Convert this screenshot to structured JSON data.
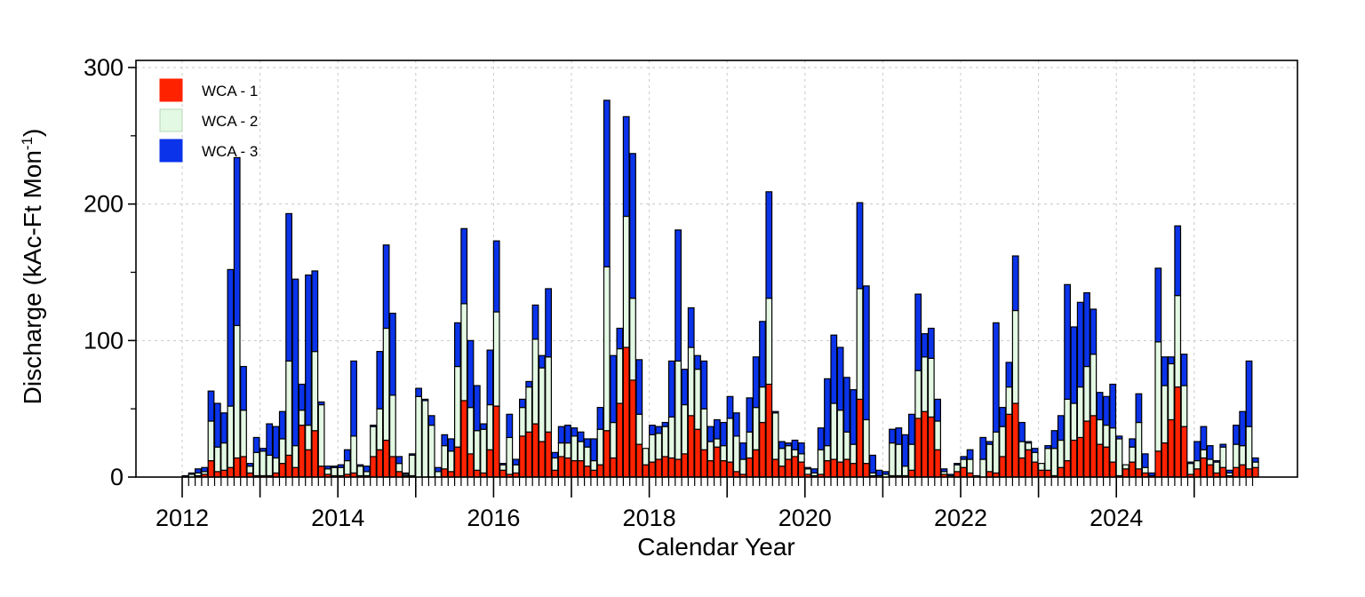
{
  "chart_data": {
    "type": "bar",
    "stacked": true,
    "title": "",
    "xlabel": "Calendar Year",
    "ylabel": "Discharge (kAc-Ft Mon",
    "ylabel_superscript": "-1",
    "ylabel_close": ")",
    "ylim": [
      0,
      300
    ],
    "yticks": [
      0,
      100,
      200,
      300
    ],
    "y_minor_ticks": [
      50,
      150,
      250
    ],
    "grid": true,
    "x_start": {
      "year": 2012,
      "month": 1
    },
    "x_tick_labels": [
      "2012",
      "2014",
      "2016",
      "2018",
      "2020",
      "2022",
      "2024"
    ],
    "x_major_years": [
      2012,
      2013,
      2014,
      2015,
      2016,
      2017,
      2018,
      2019,
      2020,
      2021,
      2022,
      2023,
      2024,
      2025
    ],
    "legend_position": "top-left",
    "series": [
      {
        "name": "WCA - 1",
        "color": "#ff2200",
        "values": [
          0,
          0,
          1,
          2,
          12,
          4,
          5,
          7,
          14,
          15,
          3,
          1,
          1,
          1,
          3,
          10,
          16,
          7,
          38,
          20,
          34,
          8,
          2,
          1,
          1,
          2,
          3,
          1,
          1,
          15,
          20,
          27,
          15,
          4,
          1,
          1,
          0,
          0,
          0,
          0,
          6,
          4,
          22,
          56,
          17,
          5,
          3,
          20,
          52,
          5,
          2,
          3,
          30,
          33,
          39,
          26,
          33,
          5,
          15,
          14,
          12,
          12,
          8,
          5,
          9,
          34,
          14,
          54,
          95,
          71,
          24,
          9,
          11,
          13,
          15,
          14,
          13,
          17,
          45,
          35,
          20,
          12,
          22,
          12,
          11,
          4,
          2,
          14,
          20,
          40,
          68,
          13,
          8,
          13,
          15,
          11,
          2,
          1,
          2,
          12,
          13,
          11,
          13,
          10,
          57,
          10,
          1,
          0,
          0,
          1,
          1,
          1,
          5,
          43,
          48,
          44,
          20,
          2,
          0,
          4,
          7,
          3,
          0,
          0,
          4,
          3,
          15,
          46,
          54,
          14,
          20,
          11,
          5,
          5,
          1,
          7,
          12,
          27,
          29,
          41,
          45,
          24,
          22,
          11,
          1,
          6,
          11,
          6,
          3,
          1,
          19,
          25,
          42,
          66,
          37,
          2,
          6,
          14,
          9,
          3,
          7,
          1,
          7,
          9,
          6,
          7
        ]
      },
      {
        "name": "WCA - 2",
        "color": "#e4f9e4",
        "values": [
          0,
          2,
          2,
          2,
          29,
          18,
          20,
          45,
          97,
          34,
          5,
          17,
          18,
          15,
          11,
          18,
          69,
          16,
          11,
          18,
          58,
          45,
          4,
          6,
          6,
          10,
          27,
          7,
          3,
          22,
          30,
          82,
          45,
          6,
          1,
          15,
          59,
          56,
          38,
          4,
          17,
          15,
          59,
          71,
          34,
          29,
          32,
          33,
          69,
          4,
          27,
          6,
          21,
          33,
          62,
          54,
          55,
          9,
          10,
          11,
          18,
          14,
          14,
          7,
          26,
          120,
          26,
          40,
          96,
          60,
          22,
          12,
          20,
          19,
          22,
          30,
          72,
          36,
          50,
          44,
          30,
          14,
          6,
          11,
          32,
          26,
          11,
          19,
          31,
          26,
          63,
          34,
          13,
          10,
          5,
          6,
          4,
          2,
          18,
          11,
          41,
          38,
          20,
          14,
          81,
          32,
          2,
          1,
          2,
          24,
          23,
          7,
          19,
          35,
          40,
          43,
          21,
          2,
          1,
          5,
          6,
          10,
          1,
          13,
          20,
          30,
          22,
          20,
          68,
          12,
          5,
          7,
          5,
          16,
          20,
          20,
          45,
          27,
          37,
          40,
          45,
          18,
          16,
          25,
          27,
          3,
          11,
          34,
          4,
          0,
          80,
          42,
          41,
          67,
          30,
          8,
          6,
          6,
          4,
          8,
          15,
          2,
          17,
          14,
          31,
          4
        ]
      },
      {
        "name": "WCA - 3",
        "color": "#0a33ea",
        "values": [
          1,
          1,
          3,
          3,
          22,
          32,
          22,
          100,
          123,
          32,
          2,
          11,
          2,
          23,
          23,
          20,
          108,
          122,
          19,
          110,
          59,
          2,
          2,
          1,
          2,
          8,
          55,
          1,
          4,
          1,
          42,
          61,
          60,
          5,
          1,
          1,
          6,
          1,
          7,
          3,
          8,
          9,
          32,
          55,
          49,
          33,
          4,
          40,
          52,
          1,
          17,
          4,
          6,
          4,
          25,
          9,
          50,
          4,
          12,
          13,
          6,
          7,
          6,
          16,
          16,
          122,
          49,
          15,
          73,
          106,
          40,
          0,
          7,
          5,
          3,
          41,
          96,
          26,
          29,
          10,
          35,
          11,
          14,
          17,
          16,
          17,
          12,
          25,
          37,
          48,
          78,
          1,
          5,
          2,
          7,
          8,
          1,
          3,
          16,
          49,
          50,
          46,
          40,
          40,
          63,
          98,
          13,
          4,
          2,
          10,
          12,
          23,
          22,
          56,
          17,
          22,
          16,
          2,
          1,
          1,
          2,
          7,
          0,
          16,
          2,
          80,
          14,
          18,
          40,
          14,
          1,
          3,
          0,
          2,
          13,
          18,
          84,
          56,
          62,
          54,
          33,
          20,
          21,
          32,
          2,
          0,
          6,
          21,
          10,
          2,
          54,
          21,
          5,
          51,
          23,
          1,
          14,
          17,
          10,
          1,
          2,
          2,
          14,
          25,
          48,
          3
        ]
      }
    ]
  }
}
